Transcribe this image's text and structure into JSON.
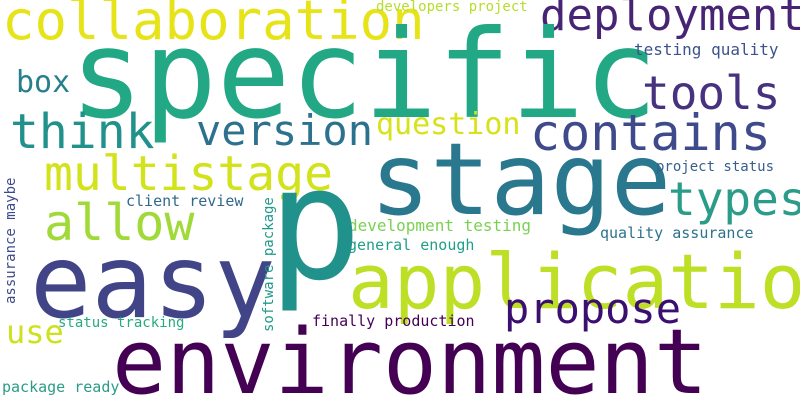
{
  "words": {
    "specific": {
      "text": "specific",
      "color": "#22a884"
    },
    "p": {
      "text": "p",
      "color": "#21918c"
    },
    "environment": {
      "text": "environment",
      "color": "#440154"
    },
    "easy": {
      "text": "easy",
      "color": "#414487"
    },
    "stage": {
      "text": "stage",
      "color": "#2a788e"
    },
    "application": {
      "text": "application",
      "color": "#bddf26"
    },
    "collaboration": {
      "text": "collaboration",
      "color": "#e6e419"
    },
    "deployment": {
      "text": "deployment",
      "color": "#482475"
    },
    "contains": {
      "text": "contains",
      "color": "#3e4a89"
    },
    "multistage": {
      "text": "multistage",
      "color": "#d2e21b"
    },
    "allow": {
      "text": "allow",
      "color": "#a0da39"
    },
    "version": {
      "text": "version",
      "color": "#2c728e"
    },
    "think": {
      "text": "think",
      "color": "#21918c"
    },
    "tools": {
      "text": "tools",
      "color": "#46327e"
    },
    "types": {
      "text": "types",
      "color": "#2a9c89"
    },
    "propose": {
      "text": "propose",
      "color": "#3b0f70"
    },
    "box": {
      "text": "box",
      "color": "#277f8e"
    },
    "question": {
      "text": "question",
      "color": "#d8e219"
    },
    "use": {
      "text": "use",
      "color": "#cde11d"
    },
    "developers_project": {
      "text": "developers project",
      "color": "#b5de2b"
    },
    "testing_quality": {
      "text": "testing quality",
      "color": "#3b528b"
    },
    "project_status": {
      "text": "project status",
      "color": "#355f8d"
    },
    "client_review": {
      "text": "client review",
      "color": "#31688e"
    },
    "development_testing": {
      "text": "development testing",
      "color": "#7ad151"
    },
    "general_enough": {
      "text": "general enough",
      "color": "#1f9e89"
    },
    "quality_assurance": {
      "text": "quality assurance",
      "color": "#2c728e"
    },
    "assurance_maybe": {
      "text": "assurance maybe",
      "color": "#3e4a89"
    },
    "software_package": {
      "text": "software package",
      "color": "#1f9a8a"
    },
    "status_tracking": {
      "text": "status tracking",
      "color": "#25ab82"
    },
    "finally_production": {
      "text": "finally production",
      "color": "#440154"
    },
    "package_ready": {
      "text": "package ready",
      "color": "#2a9c89"
    }
  }
}
